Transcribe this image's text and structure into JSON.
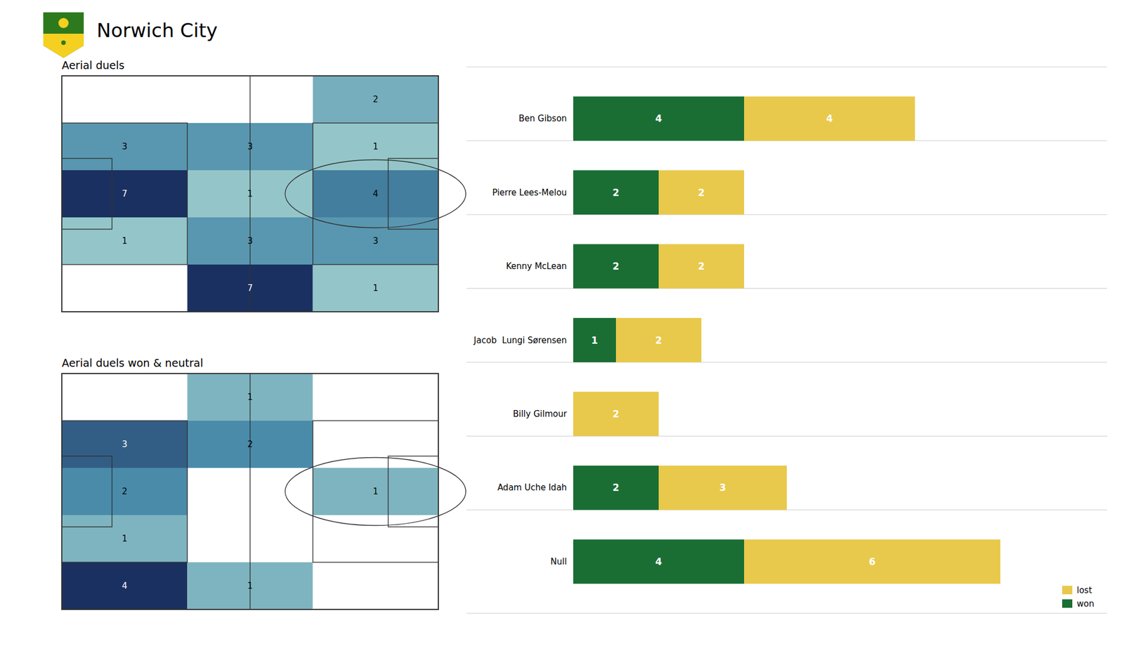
{
  "chart_data": [
    {
      "type": "heatmap",
      "title": "Aerial duels",
      "values": [
        [
          0,
          0,
          2
        ],
        [
          3,
          3,
          1
        ],
        [
          7,
          1,
          4
        ],
        [
          1,
          3,
          3
        ],
        [
          0,
          7,
          1
        ]
      ],
      "data_labels": true,
      "tick_labels": false
    },
    {
      "type": "heatmap",
      "title": "Aerial duels won & neutral",
      "values": [
        [
          0,
          1,
          0
        ],
        [
          3,
          2,
          0
        ],
        [
          2,
          0,
          1
        ],
        [
          1,
          0,
          0
        ],
        [
          4,
          1,
          0
        ]
      ],
      "data_labels": true,
      "tick_labels": false
    },
    {
      "type": "bar",
      "title": "Norwich City",
      "orientation": "horizontal",
      "stacked": true,
      "categories": [
        "Ben Gibson",
        "Pierre Lees-Melou",
        "Kenny McLean",
        "Jacob  Lungi Sørensen",
        "Billy Gilmour",
        "Adam Uche Idah",
        "Null"
      ],
      "series": [
        {
          "name": "won",
          "color": "#1a6e34",
          "values": [
            4,
            2,
            2,
            1,
            0,
            2,
            4
          ]
        },
        {
          "name": "lost",
          "color": "#e8c94b",
          "values": [
            4,
            2,
            2,
            2,
            2,
            3,
            6
          ]
        }
      ],
      "xlim": [
        -2.5,
        12.5
      ],
      "data_labels": true,
      "tick_labels": false,
      "legend": "lower right"
    }
  ]
}
